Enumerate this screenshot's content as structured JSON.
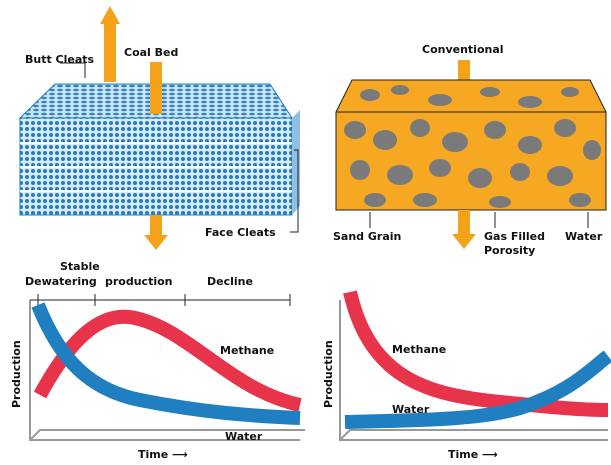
{
  "coal_bed": {
    "butt_cleats": "Butt Cleats",
    "title": "Coal Bed",
    "face_cleats": "Face Cleats"
  },
  "conventional": {
    "title": "Conventional",
    "sand_grain": "Sand Grain",
    "gas_filled_porosity": [
      "Gas Filled",
      "Porosity"
    ],
    "water": "Water"
  },
  "coal_chart": {
    "phases": {
      "stable": "Stable",
      "dewatering": "Dewatering",
      "production": "production",
      "decline": "Decline"
    },
    "y_label": "Production",
    "x_label": "Time ⟶",
    "methane": "Methane",
    "water": "Water"
  },
  "conventional_chart": {
    "y_label": "Production",
    "x_label": "Time ⟶",
    "methane": "Methane",
    "water": "Water"
  }
}
